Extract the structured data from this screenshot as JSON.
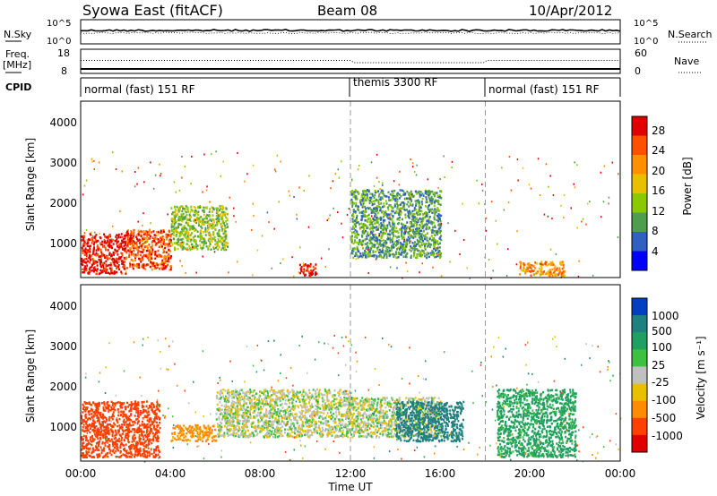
{
  "header": {
    "station": "Syowa East (fitACF)",
    "beam": "Beam 08",
    "date": "10/Apr/2012"
  },
  "noise_panel": {
    "left_label": "N.Sky",
    "left_ticks": [
      "10^5",
      "10^0"
    ],
    "right_label": "N.Search",
    "right_ticks": [
      "10^5",
      "10^0"
    ]
  },
  "freq_panel": {
    "left_label_line1": "Freq.",
    "left_label_line2": "[MHz]",
    "left_ticks": [
      "18",
      "8"
    ],
    "right_label": "Nave",
    "right_ticks": [
      "60",
      "0"
    ]
  },
  "cpid_panel": {
    "label": "CPID",
    "modes": [
      {
        "name": "normal (fast) 151 RF",
        "start_hour": 0
      },
      {
        "name": "themis 3300 RF",
        "start_hour": 12
      },
      {
        "name": "normal (fast) 151 RF",
        "start_hour": 18
      }
    ]
  },
  "power_panel": {
    "ylabel": "Slant Range [km]",
    "yticks": [
      "4000",
      "3000",
      "2000",
      "1000"
    ],
    "colorbar_label": "Power [dB]",
    "colorbar_ticks": [
      "28",
      "24",
      "20",
      "16",
      "12",
      "8",
      "4"
    ],
    "colorbar_colors": [
      "#e00000",
      "#ff5000",
      "#ff9000",
      "#e8c000",
      "#8cc800",
      "#4e9e4e",
      "#3060c0",
      "#0000ff"
    ]
  },
  "velocity_panel": {
    "ylabel": "Slant Range [km]",
    "yticks": [
      "4000",
      "3000",
      "2000",
      "1000"
    ],
    "colorbar_label": "Velocity [m s⁻¹]",
    "colorbar_ticks": [
      "1000",
      "500",
      "100",
      "25",
      "-25",
      "-100",
      "-500",
      "-1000"
    ],
    "colorbar_colors": [
      "#0040c0",
      "#208080",
      "#20a060",
      "#40c040",
      "#c0c0c0",
      "#e8c000",
      "#ff8c00",
      "#ff4000",
      "#e00000"
    ]
  },
  "xaxis": {
    "label": "Time UT",
    "ticks": [
      "00:00",
      "04:00",
      "08:00",
      "12:00",
      "16:00",
      "20:00",
      "00:00"
    ]
  },
  "chart_data": {
    "type": "heatmap",
    "title": "Syowa East (fitACF)  Beam 08  10/Apr/2012",
    "xlabel": "Time UT",
    "ylabel": "Slant Range [km]",
    "xlim_hours": [
      0,
      24
    ],
    "ylim_km": [
      180,
      4600
    ],
    "grid": false,
    "mode_change_hours": [
      12,
      18
    ],
    "power_regions_hour_km_db": [
      {
        "t0": 0.0,
        "t1": 2.0,
        "r0": 300,
        "r1": 1300,
        "db": 28
      },
      {
        "t0": 2.0,
        "t1": 4.0,
        "r0": 400,
        "r1": 1400,
        "db": 24
      },
      {
        "t0": 4.0,
        "t1": 6.5,
        "r0": 900,
        "r1": 2000,
        "db": 12
      },
      {
        "t0": 9.7,
        "t1": 10.5,
        "r0": 250,
        "r1": 550,
        "db": 28
      },
      {
        "t0": 12.0,
        "t1": 16.0,
        "r0": 700,
        "r1": 2400,
        "db": 8
      },
      {
        "t0": 19.5,
        "t1": 21.5,
        "r0": 250,
        "r1": 600,
        "db": 20
      }
    ],
    "velocity_regions_hour_km_ms": [
      {
        "t0": 0.0,
        "t1": 3.5,
        "r0": 300,
        "r1": 1700,
        "v": -500
      },
      {
        "t0": 4.0,
        "t1": 6.0,
        "r0": 700,
        "r1": 1100,
        "v": -100
      },
      {
        "t0": 6.0,
        "t1": 12.0,
        "r0": 800,
        "r1": 2000,
        "v": 0
      },
      {
        "t0": 12.0,
        "t1": 16.0,
        "r0": 800,
        "r1": 1800,
        "v": 0
      },
      {
        "t0": 14.0,
        "t1": 17.0,
        "r0": 700,
        "r1": 1700,
        "v": 500
      },
      {
        "t0": 18.5,
        "t1": 22.0,
        "r0": 300,
        "r1": 2000,
        "v": 100
      }
    ]
  }
}
